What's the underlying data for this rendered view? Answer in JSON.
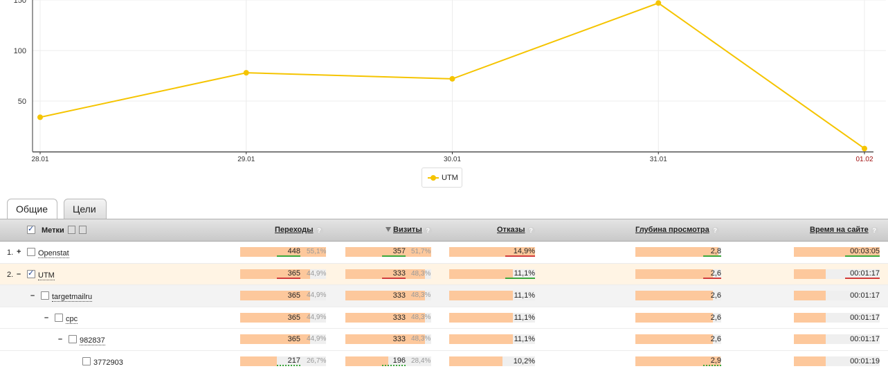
{
  "chart_data": {
    "type": "line",
    "categories": [
      "28.01",
      "29.01",
      "30.01",
      "31.01",
      "01.02"
    ],
    "series": [
      {
        "name": "UTM",
        "values": [
          34,
          78,
          72,
          147,
          3
        ],
        "color": "#f5c400"
      }
    ],
    "y_ticks": [
      50,
      100,
      150
    ],
    "ylim": [
      0,
      150
    ],
    "holiday_color": "#a01010",
    "grid": true
  },
  "legend": {
    "label": "UTM"
  },
  "tabs": [
    {
      "label": "Общие",
      "active": true
    },
    {
      "label": "Цели",
      "active": false
    }
  ],
  "table": {
    "headers": {
      "labels": "Метки",
      "transitions": "Переходы",
      "visits": "Визиты",
      "bounces": "Отказы",
      "depth": "Глубина просмотра",
      "time": "Время на сайте",
      "help": "?"
    },
    "rows": [
      {
        "num": "1.",
        "toggle": "+",
        "checked": false,
        "name": "Openstat",
        "transitions": "448",
        "transitions_pct": "55,1%",
        "transitions_fill": 1.0,
        "visits": "357",
        "visits_pct": "51,7%",
        "visits_fill": 1.0,
        "bounces": "14,9%",
        "bounces_fill": 1.0,
        "depth": "2,8",
        "depth_fill": 0.97,
        "time": "00:03:05",
        "time_fill": 1.0
      },
      {
        "num": "2.",
        "toggle": "–",
        "checked": true,
        "name": "UTM",
        "transitions": "365",
        "transitions_pct": "44,9%",
        "transitions_fill": 0.815,
        "visits": "333",
        "visits_pct": "48,3%",
        "visits_fill": 0.93,
        "bounces": "11,1%",
        "bounces_fill": 0.74,
        "depth": "2,6",
        "depth_fill": 0.9,
        "time": "00:01:17",
        "time_fill": 0.37
      },
      {
        "num": "",
        "toggle": "–",
        "checked": false,
        "name": "targetmailru",
        "transitions": "365",
        "transitions_pct": "44,9%",
        "transitions_fill": 0.815,
        "visits": "333",
        "visits_pct": "48,3%",
        "visits_fill": 0.93,
        "bounces": "11,1%",
        "bounces_fill": 0.74,
        "depth": "2,6",
        "depth_fill": 0.9,
        "time": "00:01:17",
        "time_fill": 0.37
      },
      {
        "num": "",
        "toggle": "–",
        "checked": false,
        "name": "cpc",
        "transitions": "365",
        "transitions_pct": "44,9%",
        "transitions_fill": 0.815,
        "visits": "333",
        "visits_pct": "48,3%",
        "visits_fill": 0.93,
        "bounces": "11,1%",
        "bounces_fill": 0.74,
        "depth": "2,6",
        "depth_fill": 0.9,
        "time": "00:01:17",
        "time_fill": 0.37
      },
      {
        "num": "",
        "toggle": "–",
        "checked": false,
        "name": "982837",
        "transitions": "365",
        "transitions_pct": "44,9%",
        "transitions_fill": 0.815,
        "visits": "333",
        "visits_pct": "48,3%",
        "visits_fill": 0.93,
        "bounces": "11,1%",
        "bounces_fill": 0.74,
        "depth": "2,6",
        "depth_fill": 0.9,
        "time": "00:01:17",
        "time_fill": 0.37
      },
      {
        "num": "",
        "toggle": "",
        "checked": false,
        "name": "3772903",
        "transitions": "217",
        "transitions_pct": "26,7%",
        "transitions_fill": 0.43,
        "visits": "196",
        "visits_pct": "28,4%",
        "visits_fill": 0.5,
        "bounces": "10,2%",
        "bounces_fill": 0.62,
        "depth": "2,9",
        "depth_fill": 0.99,
        "time": "00:01:19",
        "time_fill": 0.37
      }
    ]
  }
}
